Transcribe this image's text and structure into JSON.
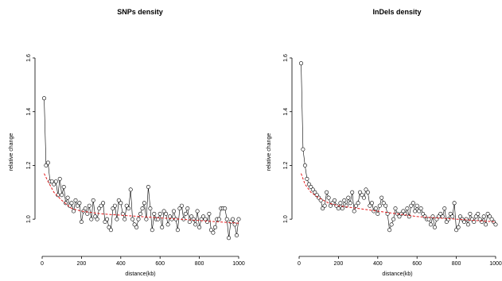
{
  "colors": {
    "series": "#000000",
    "fit": "#e41a1c",
    "axis": "#000000"
  },
  "chart_data": [
    {
      "type": "line",
      "title": "SNPs density",
      "xlabel": "distance(kb)",
      "ylabel": "relative change",
      "xlim": [
        0,
        1000
      ],
      "ylim": [
        0.9,
        1.6
      ],
      "xticks": [
        "0",
        "200",
        "400",
        "600",
        "800",
        "1000"
      ],
      "yticks": [
        "1.0",
        "1.2",
        "1.4",
        "1.6"
      ],
      "grid": false,
      "series": [
        {
          "style": "points-and-lines",
          "x": [
            10,
            20,
            30,
            40,
            50,
            60,
            70,
            80,
            90,
            100,
            110,
            120,
            130,
            140,
            150,
            160,
            170,
            180,
            190,
            200,
            210,
            220,
            230,
            240,
            250,
            260,
            270,
            280,
            290,
            300,
            310,
            320,
            330,
            340,
            350,
            360,
            370,
            380,
            390,
            400,
            410,
            420,
            430,
            440,
            450,
            460,
            470,
            480,
            490,
            500,
            510,
            520,
            530,
            540,
            550,
            560,
            570,
            580,
            590,
            600,
            610,
            620,
            630,
            640,
            650,
            660,
            670,
            680,
            690,
            700,
            710,
            720,
            730,
            740,
            750,
            760,
            770,
            780,
            790,
            800,
            810,
            820,
            830,
            840,
            850,
            860,
            870,
            880,
            890,
            900,
            910,
            920,
            930,
            940,
            950,
            960,
            970,
            980,
            990,
            1000
          ],
          "y": [
            1.45,
            1.2,
            1.21,
            1.14,
            1.14,
            1.13,
            1.14,
            1.09,
            1.15,
            1.09,
            1.12,
            1.06,
            1.08,
            1.05,
            1.06,
            1.03,
            1.07,
            1.05,
            1.06,
            0.99,
            1.03,
            1.04,
            1.02,
            1.05,
            1.0,
            1.07,
            1.01,
            1.0,
            1.04,
            1.05,
            1.06,
            0.99,
            1.0,
            0.97,
            0.96,
            1.04,
            1.05,
            1.0,
            1.07,
            1.06,
            1.02,
            1.0,
            1.05,
            1.04,
            1.11,
            1.0,
            0.98,
            0.97,
            1.0,
            1.02,
            1.04,
            1.06,
            1.0,
            1.12,
            1.04,
            0.96,
            1.02,
            1.0,
            1.0,
            1.02,
            0.97,
            1.03,
            1.02,
            0.98,
            1.01,
            1.0,
            1.03,
            1.0,
            0.96,
            1.04,
            1.05,
            1.0,
            1.02,
            1.04,
            0.99,
            1.01,
            1.0,
            0.98,
            1.03,
            0.97,
            1.0,
            1.01,
            1.0,
            0.99,
            1.02,
            0.96,
            0.95,
            0.97,
            1.0,
            1.0,
            1.04,
            1.04,
            1.04,
            1.0,
            0.93,
            0.99,
            1.0,
            0.98,
            0.94,
            1.0
          ]
        },
        {
          "style": "dashed-fit",
          "x": [
            10,
            30,
            60,
            100,
            150,
            200,
            300,
            400,
            500,
            600,
            700,
            800,
            900,
            1000
          ],
          "y": [
            1.17,
            1.14,
            1.1,
            1.07,
            1.04,
            1.03,
            1.02,
            1.015,
            1.01,
            1.005,
            1.0,
            0.995,
            0.99,
            0.985
          ]
        }
      ]
    },
    {
      "type": "line",
      "title": "InDels density",
      "xlabel": "distance(kb)",
      "ylabel": "relative change",
      "xlim": [
        0,
        1000
      ],
      "ylim": [
        0.9,
        1.6
      ],
      "xticks": [
        "0",
        "200",
        "400",
        "600",
        "800",
        "1000"
      ],
      "yticks": [
        "1.0",
        "1.2",
        "1.4",
        "1.6"
      ],
      "grid": false,
      "series": [
        {
          "style": "points-and-lines",
          "x": [
            10,
            20,
            30,
            40,
            50,
            60,
            70,
            80,
            90,
            100,
            110,
            120,
            130,
            140,
            150,
            160,
            170,
            180,
            190,
            200,
            210,
            220,
            230,
            240,
            250,
            260,
            270,
            280,
            290,
            300,
            310,
            320,
            330,
            340,
            350,
            360,
            370,
            380,
            390,
            400,
            410,
            420,
            430,
            440,
            450,
            460,
            470,
            480,
            490,
            500,
            510,
            520,
            530,
            540,
            550,
            560,
            570,
            580,
            590,
            600,
            610,
            620,
            630,
            640,
            650,
            660,
            670,
            680,
            690,
            700,
            710,
            720,
            730,
            740,
            750,
            760,
            770,
            780,
            790,
            800,
            810,
            820,
            830,
            840,
            850,
            860,
            870,
            880,
            890,
            900,
            910,
            920,
            930,
            940,
            950,
            960,
            970,
            980,
            990,
            1000
          ],
          "y": [
            1.58,
            1.26,
            1.2,
            1.15,
            1.13,
            1.12,
            1.11,
            1.1,
            1.09,
            1.08,
            1.07,
            1.04,
            1.05,
            1.1,
            1.08,
            1.05,
            1.06,
            1.07,
            1.05,
            1.04,
            1.06,
            1.04,
            1.07,
            1.05,
            1.08,
            1.06,
            1.1,
            1.03,
            1.05,
            1.06,
            1.1,
            1.09,
            1.08,
            1.11,
            1.1,
            1.05,
            1.06,
            1.03,
            1.04,
            1.02,
            1.05,
            1.08,
            1.06,
            1.05,
            1.02,
            0.96,
            0.98,
            1.0,
            1.04,
            1.02,
            1.01,
            1.02,
            1.03,
            1.02,
            1.04,
            1.01,
            1.05,
            1.06,
            1.03,
            1.05,
            1.03,
            1.04,
            1.02,
            1.01,
            1.0,
            1.0,
            0.98,
            1.01,
            0.97,
            1.0,
            1.01,
            1.02,
            1.01,
            1.04,
            0.99,
            1.0,
            1.02,
            1.01,
            1.06,
            0.96,
            0.97,
            1.01,
            1.0,
            0.99,
            1.0,
            0.98,
            1.02,
            1.0,
            0.99,
            1.01,
            1.02,
            1.0,
            0.99,
            1.01,
            0.98,
            1.02,
            1.01,
            1.0,
            0.99,
            0.98
          ]
        },
        {
          "style": "dashed-fit",
          "x": [
            10,
            30,
            60,
            100,
            150,
            200,
            300,
            400,
            500,
            600,
            700,
            800,
            900,
            1000
          ],
          "y": [
            1.17,
            1.13,
            1.1,
            1.08,
            1.06,
            1.05,
            1.04,
            1.03,
            1.02,
            1.01,
            1.005,
            1.0,
            0.995,
            0.99
          ]
        }
      ]
    }
  ]
}
